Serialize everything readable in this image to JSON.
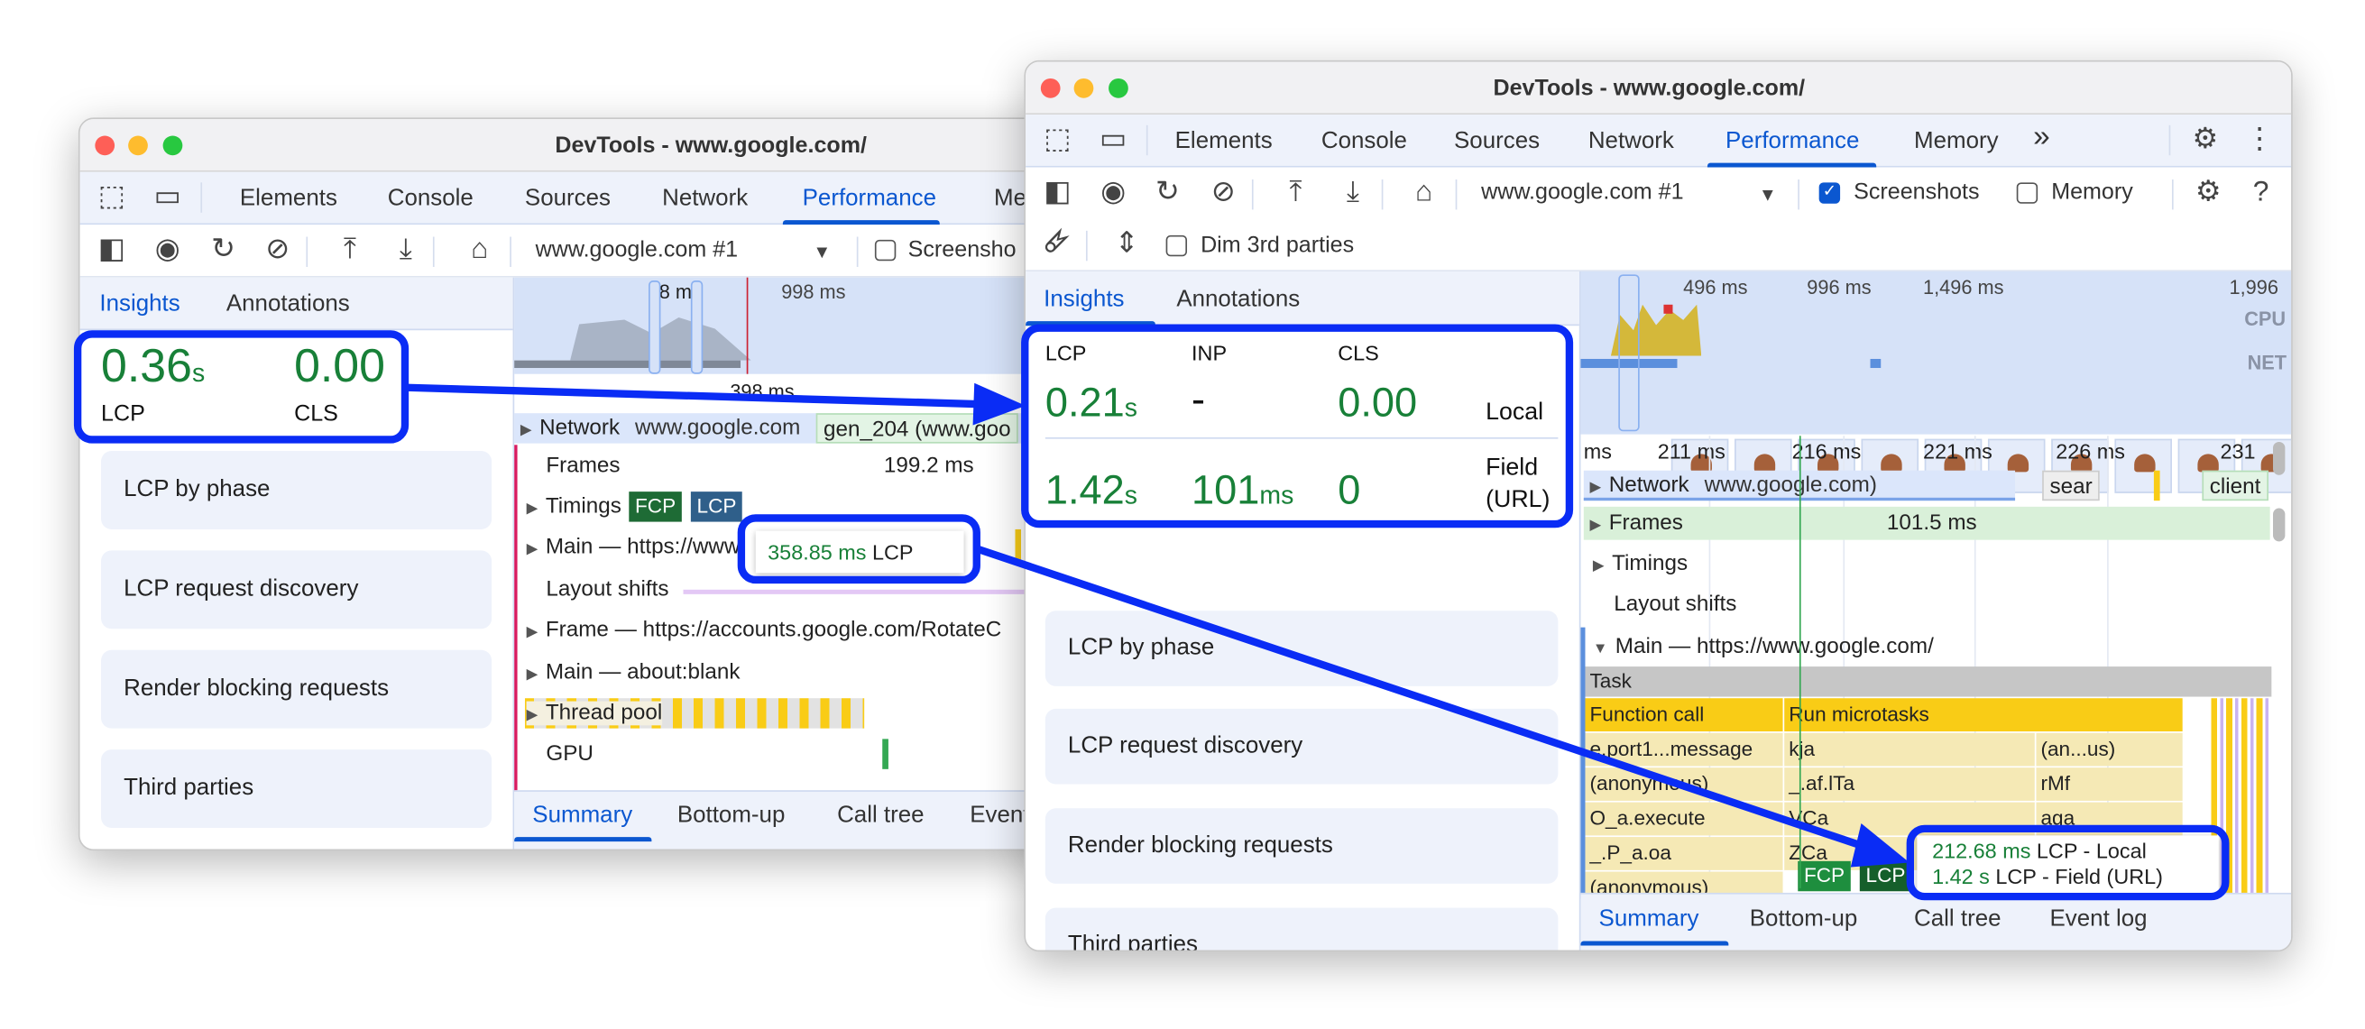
{
  "back_window": {
    "title": "DevTools - www.google.com/",
    "tabs": [
      "Elements",
      "Console",
      "Sources",
      "Network",
      "Performance",
      "Me"
    ],
    "active_tab": "Performance",
    "toolbar": {
      "target_select": "www.google.com #1",
      "screenshots_label": "Screensho",
      "screenshots_checked": false
    },
    "sidebar_tabs": [
      "Insights",
      "Annotations"
    ],
    "metrics": {
      "lcp_value": "0.36",
      "lcp_unit": "s",
      "lcp_label": "LCP",
      "cls_value": "0.00",
      "cls_label": "CLS"
    },
    "insights": [
      "LCP by phase",
      "LCP request discovery",
      "Render blocking requests",
      "Third parties"
    ],
    "overview_ticks": [
      "8 m",
      "998 ms"
    ],
    "ruler_label": "398 ms",
    "network_row": {
      "label": "Network",
      "url": "www.google.com",
      "request": "gen_204 (www.goo"
    },
    "tracks": {
      "frames": "Frames",
      "frames_time": "199.2 ms",
      "timings": "Timings",
      "fcp": "FCP",
      "lcp": "LCP",
      "main": "Main — https://www",
      "layout_shifts": "Layout shifts",
      "frame": "Frame — https://accounts.google.com/RotateC",
      "main_blank": "Main — about:blank",
      "thread_pool": "Thread pool",
      "gpu": "GPU"
    },
    "tooltip": {
      "value": "358.85 ms",
      "label": "LCP"
    },
    "bottom_tabs": [
      "Summary",
      "Bottom-up",
      "Call tree",
      "Event"
    ]
  },
  "front_window": {
    "title": "DevTools - www.google.com/",
    "tabs": [
      "Elements",
      "Console",
      "Sources",
      "Network",
      "Performance",
      "Memory"
    ],
    "more_tabs": "»",
    "active_tab": "Performance",
    "toolbar": {
      "target_select": "www.google.com #1",
      "screenshots_label": "Screenshots",
      "screenshots_checked": true,
      "memory_label": "Memory",
      "memory_checked": false,
      "dim_label": "Dim 3rd parties",
      "dim_checked": false
    },
    "sidebar_tabs": [
      "Insights",
      "Annotations"
    ],
    "metrics": {
      "headers": [
        "LCP",
        "INP",
        "CLS"
      ],
      "local": {
        "lcp": "0.21",
        "lcp_unit": "s",
        "inp": "-",
        "cls": "0.00",
        "label": "Local"
      },
      "field": {
        "lcp": "1.42",
        "lcp_unit": "s",
        "inp": "101",
        "inp_unit": "ms",
        "cls": "0",
        "label": "Field (URL)"
      }
    },
    "insights": [
      "LCP by phase",
      "LCP request discovery",
      "Render blocking requests",
      "Third parties"
    ],
    "overview_ticks": [
      "496 ms",
      "996 ms",
      "1,496 ms",
      "1,996"
    ],
    "overview_labels": {
      "cpu": "CPU",
      "net": "NET"
    },
    "ruler_ticks": [
      "ms",
      "211 ms",
      "216 ms",
      "221 ms",
      "226 ms",
      "231"
    ],
    "network_row": {
      "label": "Network",
      "url": "www.google.com)",
      "req1": "sear",
      "req2": "client"
    },
    "tracks": {
      "frames": "Frames",
      "frames_time": "101.5 ms",
      "timings": "Timings",
      "layout_shifts": "Layout shifts",
      "main": "Main — https://www.google.com/"
    },
    "flame": {
      "task": "Task",
      "row1": [
        "Function call",
        "Run microtasks"
      ],
      "row2": [
        "e.port1...message",
        "kja",
        "(an...us)"
      ],
      "row3": [
        "(anonymous)",
        "_.af.lTa",
        "rMf"
      ],
      "row4": [
        "O_a.execute",
        "VCa",
        "aga"
      ],
      "row5": [
        "_.P_a.oa",
        "ZCa"
      ],
      "row6": [
        "(anonymous)",
        "FCP",
        "LCP"
      ]
    },
    "tooltip": {
      "local_value": "212.68 ms",
      "local_label": "LCP - Local",
      "field_value": "1.42 s",
      "field_label": "LCP - Field (URL)"
    },
    "bottom_tabs": [
      "Summary",
      "Bottom-up",
      "Call tree",
      "Event log"
    ]
  },
  "colors": {
    "highlight": "#0a2cf5",
    "metric_good": "#188038",
    "accent": "#0b57d0",
    "task": "#c6c6c6",
    "scripting": "#f9cc16"
  }
}
